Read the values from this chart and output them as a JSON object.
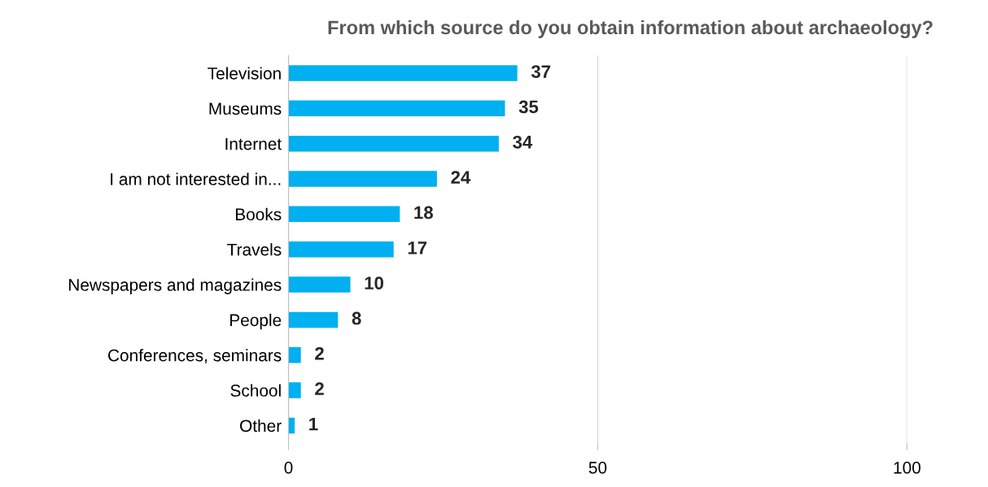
{
  "chart_data": {
    "type": "bar",
    "orientation": "horizontal",
    "title": "From which source do you obtain information about archaeology?",
    "categories": [
      "Television",
      "Museums",
      "Internet",
      "I am not interested in...",
      "Books",
      "Travels",
      "Newspapers and magazines",
      "People",
      "Conferences, seminars",
      "School",
      "Other"
    ],
    "values": [
      37,
      35,
      34,
      24,
      18,
      17,
      10,
      8,
      2,
      2,
      1
    ],
    "color": "#00b0f0",
    "xlim": [
      0,
      100
    ],
    "xticks": [
      0,
      50,
      100
    ],
    "grid": "x",
    "data_labels": true
  }
}
